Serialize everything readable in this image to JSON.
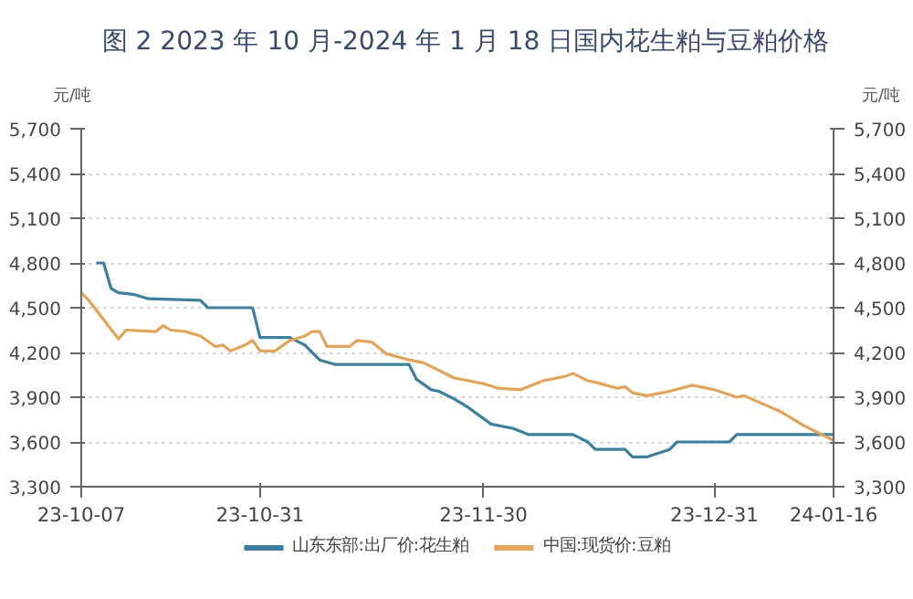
{
  "chart_data": {
    "type": "line",
    "title": "图 2 2023 年 10 月-2024 年 1 月 18 日国内花生粕与豆粕价格",
    "ylabel": "元/吨",
    "y2label": "元/吨",
    "xlim": [
      "2023-10-07",
      "2024-01-16"
    ],
    "xticks": [
      {
        "value": "2023-10-07",
        "label": "23-10-07"
      },
      {
        "value": "2023-10-31",
        "label": "23-10-31"
      },
      {
        "value": "2023-11-30",
        "label": "23-11-30"
      },
      {
        "value": "2023-12-31",
        "label": "23-12-31"
      },
      {
        "value": "2024-01-16",
        "label": "24-01-16"
      }
    ],
    "ylim": [
      3300,
      5700
    ],
    "yticks": [
      {
        "value": 3300,
        "label": "3,300"
      },
      {
        "value": 3600,
        "label": "3,600"
      },
      {
        "value": 3900,
        "label": "3,900"
      },
      {
        "value": 4200,
        "label": "4,200"
      },
      {
        "value": 4500,
        "label": "4,500"
      },
      {
        "value": 4800,
        "label": "4,800"
      },
      {
        "value": 5100,
        "label": "5,100"
      },
      {
        "value": 5400,
        "label": "5,400"
      },
      {
        "value": 5700,
        "label": "5,700"
      }
    ],
    "y2lim": [
      3300,
      5700
    ],
    "y2ticks": [
      {
        "value": 3300,
        "label": "3,300"
      },
      {
        "value": 3600,
        "label": "3,600"
      },
      {
        "value": 3900,
        "label": "3,900"
      },
      {
        "value": 4200,
        "label": "4,200"
      },
      {
        "value": 4500,
        "label": "4,500"
      },
      {
        "value": 4800,
        "label": "4,800"
      },
      {
        "value": 5100,
        "label": "5,100"
      },
      {
        "value": 5400,
        "label": "5,400"
      },
      {
        "value": 5700,
        "label": "5,700"
      }
    ],
    "grid": "y",
    "legend": "bottom",
    "marker": "none",
    "line_style": "solid",
    "series": [
      {
        "name": "山东东部:出厂价:花生粕",
        "color": "#3d7f9c",
        "x": [
          "2023-10-09",
          "2023-10-10",
          "2023-10-11",
          "2023-10-12",
          "2023-10-14",
          "2023-10-16",
          "2023-10-23",
          "2023-10-24",
          "2023-10-30",
          "2023-10-31",
          "2023-11-04",
          "2023-11-06",
          "2023-11-08",
          "2023-11-10",
          "2023-11-20",
          "2023-11-21",
          "2023-11-23",
          "2023-11-24",
          "2023-11-26",
          "2023-11-28",
          "2023-12-01",
          "2023-12-04",
          "2023-12-06",
          "2023-12-12",
          "2023-12-14",
          "2023-12-15",
          "2023-12-19",
          "2023-12-20",
          "2023-12-22",
          "2023-12-25",
          "2023-12-26",
          "2024-01-02",
          "2024-01-03",
          "2024-01-16"
        ],
        "values": [
          4800,
          4800,
          4630,
          4600,
          4590,
          4560,
          4550,
          4500,
          4500,
          4300,
          4300,
          4250,
          4150,
          4120,
          4120,
          4020,
          3950,
          3940,
          3890,
          3830,
          3720,
          3690,
          3650,
          3650,
          3600,
          3550,
          3550,
          3500,
          3500,
          3550,
          3600,
          3600,
          3650,
          3650
        ]
      },
      {
        "name": "中国:现货价:豆粕",
        "color": "#e0a45a",
        "x": [
          "2023-10-07",
          "2023-10-08",
          "2023-10-10",
          "2023-10-12",
          "2023-10-13",
          "2023-10-17",
          "2023-10-18",
          "2023-10-19",
          "2023-10-21",
          "2023-10-23",
          "2023-10-25",
          "2023-10-26",
          "2023-10-27",
          "2023-10-29",
          "2023-10-30",
          "2023-10-31",
          "2023-11-02",
          "2023-11-04",
          "2023-11-06",
          "2023-11-07",
          "2023-11-08",
          "2023-11-09",
          "2023-11-12",
          "2023-11-13",
          "2023-11-15",
          "2023-11-17",
          "2023-11-20",
          "2023-11-22",
          "2023-11-26",
          "2023-11-30",
          "2023-12-02",
          "2023-12-05",
          "2023-12-06",
          "2023-12-08",
          "2023-12-11",
          "2023-12-12",
          "2023-12-14",
          "2023-12-15",
          "2023-12-18",
          "2023-12-19",
          "2023-12-20",
          "2023-12-22",
          "2023-12-25",
          "2023-12-28",
          "2023-12-31",
          "2024-01-03",
          "2024-01-04",
          "2024-01-09",
          "2024-01-12",
          "2024-01-14",
          "2024-01-16"
        ],
        "values": [
          4600,
          4550,
          4420,
          4290,
          4350,
          4340,
          4380,
          4350,
          4340,
          4310,
          4240,
          4250,
          4210,
          4250,
          4280,
          4210,
          4210,
          4280,
          4310,
          4340,
          4340,
          4240,
          4240,
          4280,
          4270,
          4190,
          4150,
          4130,
          4030,
          3990,
          3960,
          3950,
          3970,
          4010,
          4040,
          4060,
          4010,
          4000,
          3960,
          3970,
          3930,
          3910,
          3940,
          3980,
          3950,
          3900,
          3910,
          3800,
          3710,
          3660,
          3610
        ]
      }
    ]
  }
}
